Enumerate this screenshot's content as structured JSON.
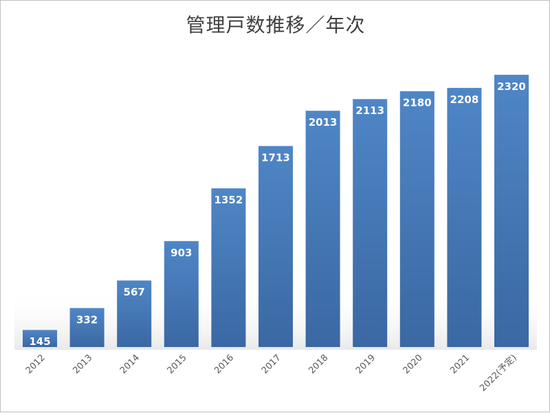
{
  "chart_data": {
    "type": "bar",
    "title": "管理戸数推移／年次",
    "categories": [
      "2012",
      "2013",
      "2014",
      "2015",
      "2016",
      "2017",
      "2018",
      "2019",
      "2020",
      "2021",
      "2022(予定)"
    ],
    "values": [
      145,
      332,
      567,
      903,
      1352,
      1713,
      2013,
      2113,
      2180,
      2208,
      2320
    ],
    "xlabel": "",
    "ylabel": "",
    "ylim": [
      0,
      2600
    ],
    "grid": false,
    "legend": "none",
    "data_labels": true,
    "bar_color": "#4a7ebb",
    "bar_color_dark": "#3a68a3",
    "label_color": "#ffffff",
    "title_color": "#404040"
  }
}
